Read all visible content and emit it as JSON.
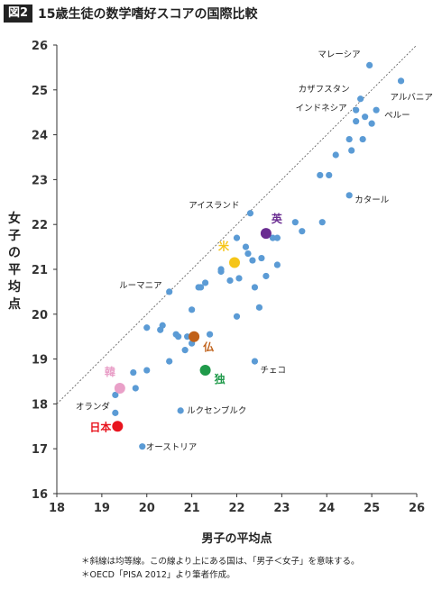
{
  "figure_label": "図2",
  "chart_data": {
    "type": "scatter",
    "title": "15歳生徒の数学嗜好スコアの国際比較",
    "xlabel": "男子の平均点",
    "ylabel": "女子の平均点",
    "xlim": [
      18,
      26
    ],
    "ylim": [
      16,
      26
    ],
    "xticks": [
      "18",
      "19",
      "20",
      "21",
      "22",
      "23",
      "24",
      "25",
      "26"
    ],
    "yticks": [
      "16",
      "17",
      "18",
      "19",
      "20",
      "21",
      "22",
      "23",
      "24",
      "25",
      "26"
    ],
    "grid": false,
    "reference_line": {
      "type": "diagonal",
      "from": [
        18,
        18
      ],
      "to": [
        26,
        26
      ]
    },
    "point_color": "#5b9bd5",
    "points": [
      [
        24.95,
        25.55
      ],
      [
        25.65,
        25.2
      ],
      [
        24.75,
        24.8
      ],
      [
        24.65,
        24.55
      ],
      [
        25.1,
        24.55
      ],
      [
        24.85,
        24.4
      ],
      [
        24.65,
        24.3
      ],
      [
        25.0,
        24.25
      ],
      [
        24.5,
        23.9
      ],
      [
        24.8,
        23.9
      ],
      [
        24.55,
        23.65
      ],
      [
        24.2,
        23.55
      ],
      [
        24.05,
        23.1
      ],
      [
        23.85,
        23.1
      ],
      [
        24.5,
        22.65
      ],
      [
        23.9,
        22.05
      ],
      [
        23.3,
        22.05
      ],
      [
        23.45,
        21.85
      ],
      [
        22.3,
        22.25
      ],
      [
        22.65,
        21.8
      ],
      [
        22.8,
        21.7
      ],
      [
        22.9,
        21.7
      ],
      [
        22.0,
        21.7
      ],
      [
        22.2,
        21.5
      ],
      [
        22.25,
        21.35
      ],
      [
        22.55,
        21.25
      ],
      [
        22.35,
        21.2
      ],
      [
        21.65,
        21.0
      ],
      [
        21.65,
        20.95
      ],
      [
        22.9,
        21.1
      ],
      [
        22.05,
        20.8
      ],
      [
        21.85,
        20.75
      ],
      [
        21.3,
        20.7
      ],
      [
        21.15,
        20.6
      ],
      [
        21.2,
        20.6
      ],
      [
        22.65,
        20.85
      ],
      [
        22.4,
        20.6
      ],
      [
        20.5,
        20.5
      ],
      [
        21.0,
        20.1
      ],
      [
        22.5,
        20.15
      ],
      [
        22.0,
        19.95
      ],
      [
        20.0,
        19.7
      ],
      [
        20.35,
        19.75
      ],
      [
        20.3,
        19.65
      ],
      [
        20.65,
        19.55
      ],
      [
        20.7,
        19.5
      ],
      [
        20.9,
        19.5
      ],
      [
        21.4,
        19.55
      ],
      [
        21.0,
        19.35
      ],
      [
        20.85,
        19.2
      ],
      [
        20.5,
        18.95
      ],
      [
        20.0,
        18.75
      ],
      [
        19.7,
        18.7
      ],
      [
        22.4,
        18.95
      ],
      [
        19.75,
        18.35
      ],
      [
        19.3,
        18.2
      ],
      [
        20.75,
        17.85
      ],
      [
        19.3,
        17.8
      ],
      [
        19.9,
        17.05
      ]
    ],
    "highlighted": [
      {
        "label": "英",
        "x": 22.65,
        "y": 21.8,
        "color": "#6a2c91"
      },
      {
        "label": "米",
        "x": 21.95,
        "y": 21.15,
        "color": "#f5c518"
      },
      {
        "label": "仏",
        "x": 21.05,
        "y": 19.5,
        "color": "#c0611a"
      },
      {
        "label": "独",
        "x": 21.3,
        "y": 18.75,
        "color": "#1f9a4a"
      },
      {
        "label": "韓",
        "x": 19.4,
        "y": 18.35,
        "color": "#e9a0c8"
      },
      {
        "label": "日本",
        "x": 19.35,
        "y": 17.5,
        "color": "#e8141e"
      }
    ],
    "annotations": [
      {
        "text": "マレーシア",
        "x": 24.95,
        "y": 25.55
      },
      {
        "text": "カザフスタン",
        "x": 24.75,
        "y": 24.8
      },
      {
        "text": "アルバニア",
        "x": 25.65,
        "y": 25.2
      },
      {
        "text": "インドネシア",
        "x": 24.65,
        "y": 24.55
      },
      {
        "text": "ペルー",
        "x": 25.1,
        "y": 24.55
      },
      {
        "text": "カタール",
        "x": 24.5,
        "y": 22.65
      },
      {
        "text": "アイスランド",
        "x": 22.3,
        "y": 22.25
      },
      {
        "text": "ルーマニア",
        "x": 20.5,
        "y": 20.5
      },
      {
        "text": "チェコ",
        "x": 22.4,
        "y": 18.95
      },
      {
        "text": "オランダ",
        "x": 19.3,
        "y": 17.8
      },
      {
        "text": "ルクセンブルク",
        "x": 20.75,
        "y": 17.85
      },
      {
        "text": "オーストリア",
        "x": 19.9,
        "y": 17.05
      }
    ]
  },
  "notes": [
    "＊斜線は均等線。この線より上にある国は、「男子＜女子」を意味する。",
    "＊OECD「PISA 2012」より筆者作成。"
  ]
}
